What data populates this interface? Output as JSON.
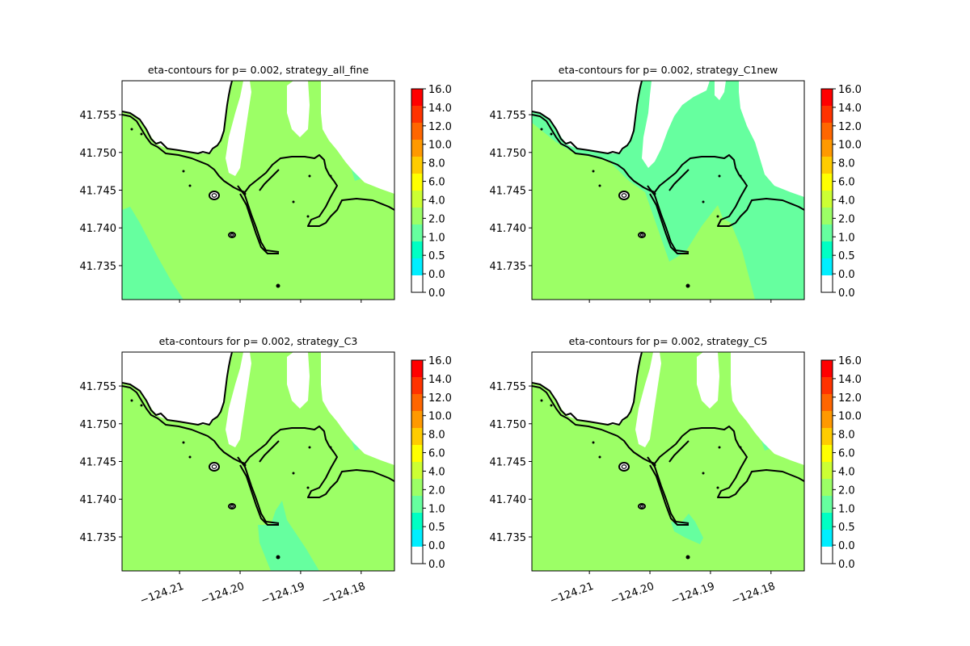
{
  "colors": {
    "land": "#ffffff",
    "shore": "#000000",
    "c_0_0.5": "#00eeff",
    "c_0.5_1": "#00ffc4",
    "c_1_2": "#66ff9f",
    "c_2_4": "#9cff66",
    "c_4_6": "#ccff33",
    "c_6_8": "#ffff00",
    "c_8_10": "#ffcc00",
    "c_10_12": "#ff9900",
    "c_12_14": "#ff5500",
    "c_14_16": "#ff0000"
  },
  "colorbar": {
    "ticks": [
      "16.0",
      "14.0",
      "12.0",
      "10.0",
      "8.0",
      "6.0",
      "4.0",
      "2.0",
      "1.0",
      "0.5",
      "0.0",
      "0.0"
    ],
    "band_colors": [
      "#ff0000",
      "#ff3300",
      "#ff6600",
      "#ff9900",
      "#ffcc00",
      "#ffff00",
      "#ccff33",
      "#9cff66",
      "#66ff9f",
      "#00ffc4",
      "#00eeff",
      "#ffffff"
    ]
  },
  "chart_data": [
    {
      "type": "heatmap",
      "title": "eta-contours for p= 0.002, strategy_all_fine",
      "variant": "all_fine",
      "xlim": [
        -124.2195,
        -124.1745
      ],
      "ylim": [
        41.7305,
        41.7595
      ],
      "xtick_values": [
        -124.21,
        -124.2,
        -124.19,
        -124.18
      ],
      "xtick_labels": [],
      "ytick_values": [
        41.755,
        41.75,
        41.745,
        41.74,
        41.735
      ],
      "ytick_labels": [
        "41.755",
        "41.750",
        "41.745",
        "41.740",
        "41.735"
      ],
      "levels": [
        0.0,
        0.0,
        0.5,
        1.0,
        2.0,
        4.0,
        6.0,
        8.0,
        10.0,
        12.0,
        14.0,
        16.0
      ],
      "dominant_level_range": [
        2.0,
        4.0
      ]
    },
    {
      "type": "heatmap",
      "title": "eta-contours for p= 0.002, strategy_C1new",
      "variant": "C1new",
      "xlim": [
        -124.2195,
        -124.1745
      ],
      "ylim": [
        41.7305,
        41.7595
      ],
      "xtick_values": [
        -124.21,
        -124.2,
        -124.19,
        -124.18
      ],
      "xtick_labels": [],
      "ytick_values": [
        41.755,
        41.75,
        41.745,
        41.74,
        41.735
      ],
      "ytick_labels": [
        "41.755",
        "41.750",
        "41.745",
        "41.740",
        "41.735"
      ],
      "levels": [
        0.0,
        0.0,
        0.5,
        1.0,
        2.0,
        4.0,
        6.0,
        8.0,
        10.0,
        12.0,
        14.0,
        16.0
      ],
      "dominant_level_range": [
        1.0,
        2.0
      ]
    },
    {
      "type": "heatmap",
      "title": "eta-contours for p= 0.002, strategy_C3",
      "variant": "C3",
      "xlim": [
        -124.2195,
        -124.1745
      ],
      "ylim": [
        41.7305,
        41.7595
      ],
      "xtick_values": [
        -124.21,
        -124.2,
        -124.19,
        -124.18
      ],
      "xtick_labels": [
        "−124.21",
        "−124.20",
        "−124.19",
        "−124.18"
      ],
      "ytick_values": [
        41.755,
        41.75,
        41.745,
        41.74,
        41.735
      ],
      "ytick_labels": [
        "41.755",
        "41.750",
        "41.745",
        "41.740",
        "41.735"
      ],
      "levels": [
        0.0,
        0.0,
        0.5,
        1.0,
        2.0,
        4.0,
        6.0,
        8.0,
        10.0,
        12.0,
        14.0,
        16.0
      ],
      "dominant_level_range": [
        2.0,
        4.0
      ]
    },
    {
      "type": "heatmap",
      "title": "eta-contours for p= 0.002, strategy_C5",
      "variant": "C5",
      "xlim": [
        -124.2195,
        -124.1745
      ],
      "ylim": [
        41.7305,
        41.7595
      ],
      "xtick_values": [
        -124.21,
        -124.2,
        -124.19,
        -124.18
      ],
      "xtick_labels": [
        "−124.21",
        "−124.20",
        "−124.19",
        "−124.18"
      ],
      "ytick_values": [
        41.755,
        41.75,
        41.745,
        41.74,
        41.735
      ],
      "ytick_labels": [
        "41.755",
        "41.750",
        "41.745",
        "41.740",
        "41.735"
      ],
      "levels": [
        0.0,
        0.0,
        0.5,
        1.0,
        2.0,
        4.0,
        6.0,
        8.0,
        10.0,
        12.0,
        14.0,
        16.0
      ],
      "dominant_level_range": [
        2.0,
        4.0
      ]
    }
  ]
}
